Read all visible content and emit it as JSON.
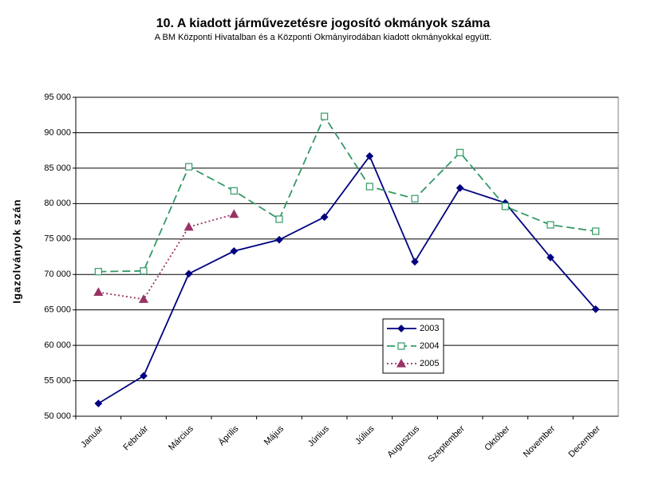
{
  "chart_data": {
    "type": "line",
    "title": "10. A  kiadott járművezetésre  jogosító okmányok száma",
    "subtitle": "A BM Központi Hivatalban és a Központi Okmányirodában kiadott okmányokkal együtt.",
    "y_label": "Igazolványok szán",
    "categories": [
      "Január",
      "Február",
      "Március",
      "Április",
      "Május",
      "Június",
      "Július",
      "Augusztus",
      "Szeptember",
      "Október",
      "November",
      "December"
    ],
    "series": [
      {
        "name": "2003",
        "color": "#000080",
        "dash": "solid",
        "marker": "diamond",
        "values": [
          51800,
          55700,
          70100,
          73300,
          74900,
          78100,
          86700,
          71800,
          82200,
          80100,
          72400,
          65100
        ]
      },
      {
        "name": "2004",
        "color": "#339966",
        "dash": "dashed",
        "marker": "square",
        "values": [
          70400,
          70500,
          85200,
          81800,
          77800,
          92300,
          82400,
          80700,
          87200,
          79600,
          77000,
          76100
        ]
      },
      {
        "name": "2005",
        "color": "#993366",
        "dash": "dotted",
        "marker": "triangle",
        "values": [
          67500,
          66500,
          76700,
          78500,
          null,
          null,
          null,
          null,
          null,
          null,
          null,
          null
        ]
      }
    ],
    "ylim": [
      50000,
      95000
    ],
    "yticks": [
      {
        "value": 50000,
        "label": "50 000"
      },
      {
        "value": 55000,
        "label": "55 000"
      },
      {
        "value": 60000,
        "label": "60 000"
      },
      {
        "value": 65000,
        "label": "65 000"
      },
      {
        "value": 70000,
        "label": "70 000"
      },
      {
        "value": 75000,
        "label": "75 000"
      },
      {
        "value": 80000,
        "label": "80 000"
      },
      {
        "value": 85000,
        "label": "85 000"
      },
      {
        "value": 90000,
        "label": "90 000"
      },
      {
        "value": 95000,
        "label": "95 000"
      }
    ],
    "grid": true,
    "legend": "inside"
  }
}
